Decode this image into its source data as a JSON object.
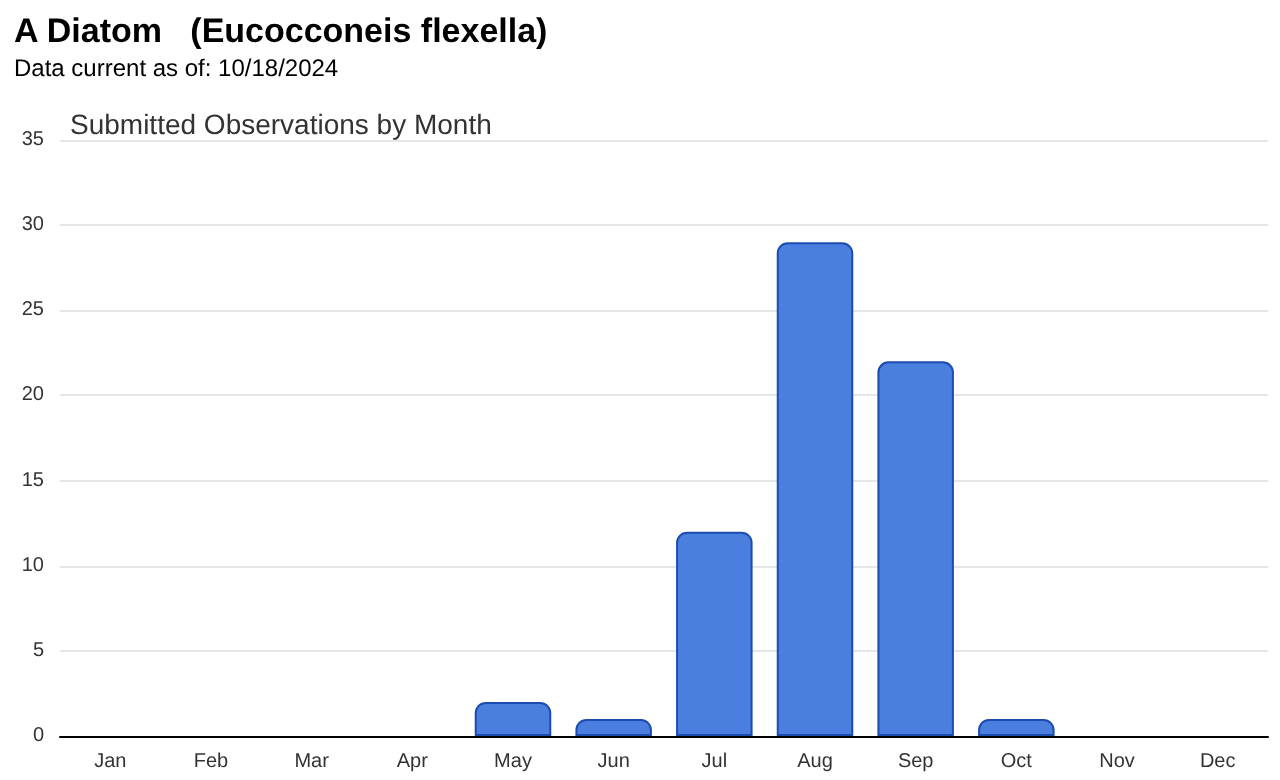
{
  "chart_data": {
    "type": "bar",
    "title": "A Diatom   (Eucocconeis flexella)",
    "subtitle": "Data current as of: 10/18/2024",
    "annotations": [
      "Submitted Observations by Month"
    ],
    "categories": [
      "Jan",
      "Feb",
      "Mar",
      "Apr",
      "May",
      "Jun",
      "Jul",
      "Aug",
      "Sep",
      "Oct",
      "Nov",
      "Dec"
    ],
    "values": [
      0,
      0,
      0,
      0,
      2,
      1,
      12,
      29,
      22,
      1,
      0,
      0
    ],
    "color": "#4a7fe0",
    "ylim": [
      0,
      35
    ],
    "yticks": [
      0,
      5,
      10,
      15,
      20,
      25,
      30,
      35
    ],
    "grid": "y"
  }
}
